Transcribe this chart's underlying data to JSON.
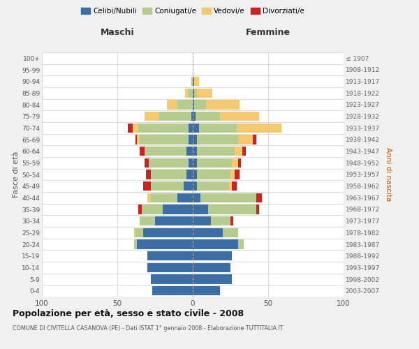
{
  "age_groups": [
    "0-4",
    "5-9",
    "10-14",
    "15-19",
    "20-24",
    "25-29",
    "30-34",
    "35-39",
    "40-44",
    "45-49",
    "50-54",
    "55-59",
    "60-64",
    "65-69",
    "70-74",
    "75-79",
    "80-84",
    "85-89",
    "90-94",
    "95-99",
    "100+"
  ],
  "birth_years": [
    "2003-2007",
    "1998-2002",
    "1993-1997",
    "1988-1992",
    "1983-1987",
    "1978-1982",
    "1973-1977",
    "1968-1972",
    "1963-1967",
    "1958-1962",
    "1953-1957",
    "1948-1952",
    "1943-1947",
    "1938-1942",
    "1933-1937",
    "1928-1932",
    "1923-1927",
    "1918-1922",
    "1913-1917",
    "1908-1912",
    "≤ 1907"
  ],
  "colors": {
    "celibi": "#3a6ea5",
    "coniugati": "#b5cc8e",
    "vedovi": "#f5c970",
    "divorziati": "#cc2222"
  },
  "males": {
    "celibi": [
      27,
      28,
      30,
      30,
      37,
      33,
      25,
      20,
      10,
      6,
      4,
      3,
      4,
      3,
      3,
      1,
      0,
      0,
      0,
      0,
      0
    ],
    "coniugati": [
      0,
      0,
      0,
      0,
      2,
      5,
      10,
      14,
      18,
      22,
      24,
      26,
      28,
      32,
      33,
      21,
      10,
      3,
      1,
      0,
      0
    ],
    "vedovi": [
      0,
      0,
      0,
      0,
      0,
      1,
      0,
      0,
      2,
      0,
      0,
      0,
      0,
      2,
      4,
      10,
      7,
      2,
      0,
      0,
      0
    ],
    "divorziati": [
      0,
      0,
      0,
      0,
      0,
      0,
      0,
      2,
      0,
      5,
      3,
      3,
      3,
      1,
      3,
      0,
      0,
      0,
      0,
      0,
      0
    ]
  },
  "females": {
    "celibi": [
      18,
      26,
      25,
      26,
      30,
      20,
      12,
      10,
      5,
      3,
      3,
      3,
      3,
      3,
      4,
      2,
      1,
      1,
      1,
      0,
      0
    ],
    "coniugati": [
      0,
      0,
      0,
      0,
      4,
      10,
      13,
      32,
      37,
      21,
      22,
      23,
      25,
      27,
      25,
      16,
      8,
      2,
      0,
      0,
      0
    ],
    "vedovi": [
      0,
      0,
      0,
      0,
      0,
      0,
      0,
      0,
      0,
      2,
      3,
      4,
      5,
      10,
      30,
      26,
      22,
      10,
      3,
      0,
      0
    ],
    "divorziati": [
      0,
      0,
      0,
      0,
      0,
      0,
      2,
      2,
      4,
      3,
      3,
      2,
      2,
      2,
      0,
      0,
      0,
      0,
      0,
      0,
      0
    ]
  },
  "xlim": 100,
  "title": "Popolazione per età, sesso e stato civile - 2008",
  "subtitle": "COMUNE DI CIVITELLA CASANOVA (PE) - Dati ISTAT 1° gennaio 2008 - Elaborazione TUTTITALIA.IT",
  "xlabel_left": "Maschi",
  "xlabel_right": "Femmine",
  "ylabel_left": "Fasce di età",
  "ylabel_right": "Anni di nascita",
  "legend_labels": [
    "Celibi/Nubili",
    "Coniugati/e",
    "Vedovi/e",
    "Divorziati/e"
  ],
  "bg_color": "#f0f0f0",
  "plot_bg": "#ffffff"
}
